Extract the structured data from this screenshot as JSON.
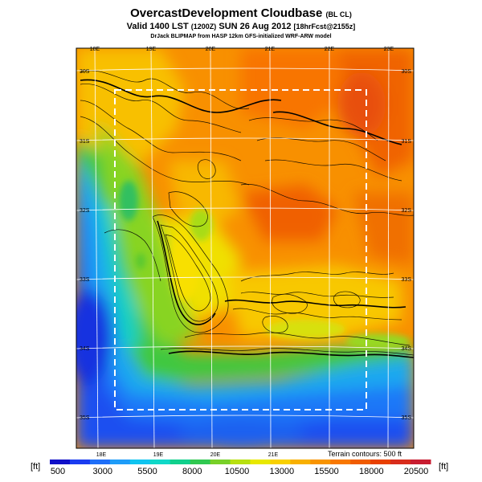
{
  "title": {
    "main": "OvercastDevelopment Cloudbase",
    "main_suffix": "(BL CL)",
    "valid_prefix": "Valid 1400 LST",
    "valid_utc": "(1200Z)",
    "valid_date": "SUN 26 Aug 2012",
    "valid_forecast": "[18hrFcst@2155z]",
    "credit": "DrJack BLIPMAP from HASP 12km GFS-initialized WRF-ARW model"
  },
  "map": {
    "lon_labels_top": [
      "18E",
      "19E",
      "20E",
      "21E",
      "22E",
      "23E"
    ],
    "lon_labels_bottom": [
      "18E",
      "19E",
      "20E",
      "21E"
    ],
    "lat_labels_left": [
      "30S",
      "31S",
      "32S",
      "33S",
      "34S",
      "35S"
    ],
    "lat_labels_right": [
      "30S",
      "31S",
      "32S",
      "33S",
      "34S",
      "35S"
    ],
    "terrain_note": "Terrain contours: 500 ft"
  },
  "colorbar": {
    "unit_left": "[ft]",
    "unit_right": "[ft]",
    "ticks": [
      "500",
      "3000",
      "5500",
      "8000",
      "10500",
      "13000",
      "15500",
      "18000",
      "20500"
    ],
    "colors": [
      "#1010c8",
      "#1a3cf0",
      "#1e6ef8",
      "#1e9cf8",
      "#10c4f0",
      "#10d8c8",
      "#10d08c",
      "#30c850",
      "#78d028",
      "#b8e010",
      "#e8e800",
      "#f8d000",
      "#f8b000",
      "#f89400",
      "#f87800",
      "#f05c00",
      "#e84000",
      "#d82c1c",
      "#c81c30"
    ]
  },
  "legend": {
    "color_low": "#1010c8",
    "color_high": "#c81c30"
  }
}
